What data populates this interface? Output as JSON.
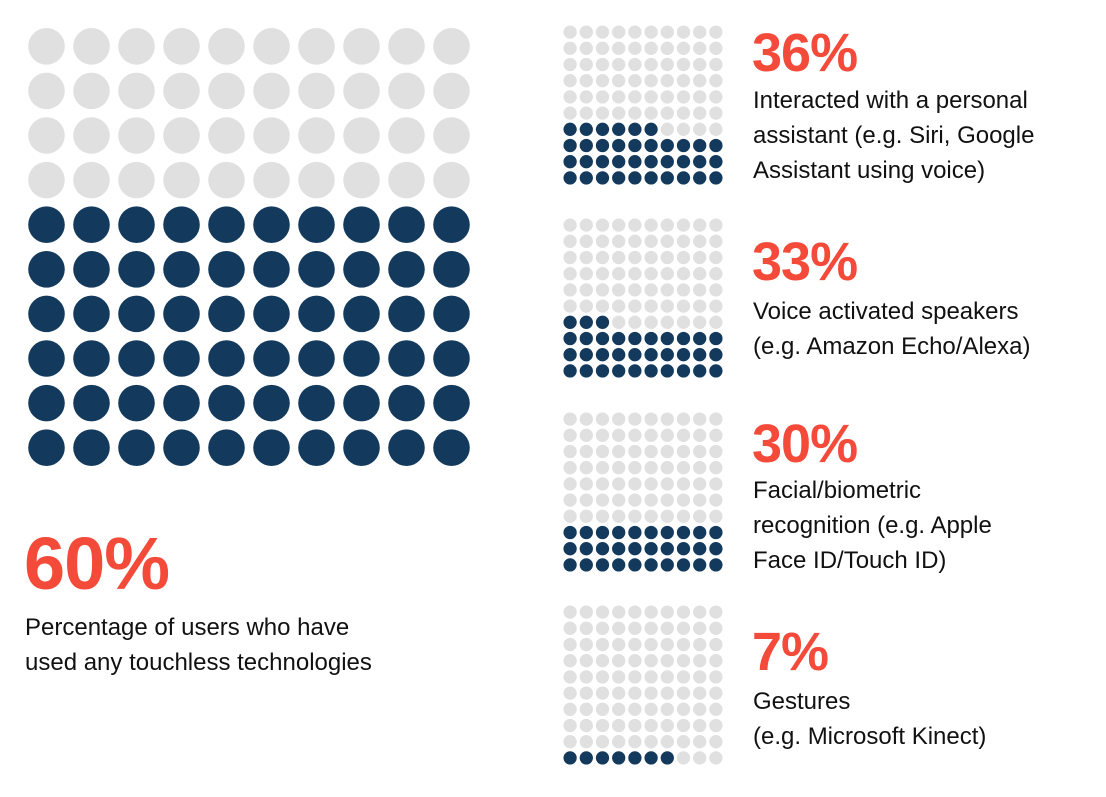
{
  "colors": {
    "filled": "#133a5d",
    "empty": "#e0e0e0",
    "accent": "#f44a3a"
  },
  "chart_data": [
    {
      "type": "waffle",
      "grid": {
        "rows": 10,
        "cols": 10
      },
      "value_pct": 60,
      "label": "60%",
      "description_lines": [
        "Percentage of users who have",
        "used any touchless technologies"
      ]
    },
    {
      "type": "waffle",
      "grid": {
        "rows": 10,
        "cols": 10
      },
      "value_pct": 36,
      "label": "36%",
      "description_lines": [
        "Interacted with a personal",
        "assistant (e.g. Siri, Google",
        "Assistant using voice)"
      ]
    },
    {
      "type": "waffle",
      "grid": {
        "rows": 10,
        "cols": 10
      },
      "value_pct": 33,
      "label": "33%",
      "description_lines": [
        "Voice activated speakers",
        "(e.g. Amazon Echo/Alexa)"
      ]
    },
    {
      "type": "waffle",
      "grid": {
        "rows": 10,
        "cols": 10
      },
      "value_pct": 30,
      "label": "30%",
      "description_lines": [
        "Facial/biometric",
        "recognition (e.g. Apple",
        "Face ID/Touch ID)"
      ]
    },
    {
      "type": "waffle",
      "grid": {
        "rows": 10,
        "cols": 10
      },
      "value_pct": 7,
      "label": "7%",
      "description_lines": [
        "Gestures",
        "(e.g. Microsoft Kinect)"
      ]
    }
  ]
}
